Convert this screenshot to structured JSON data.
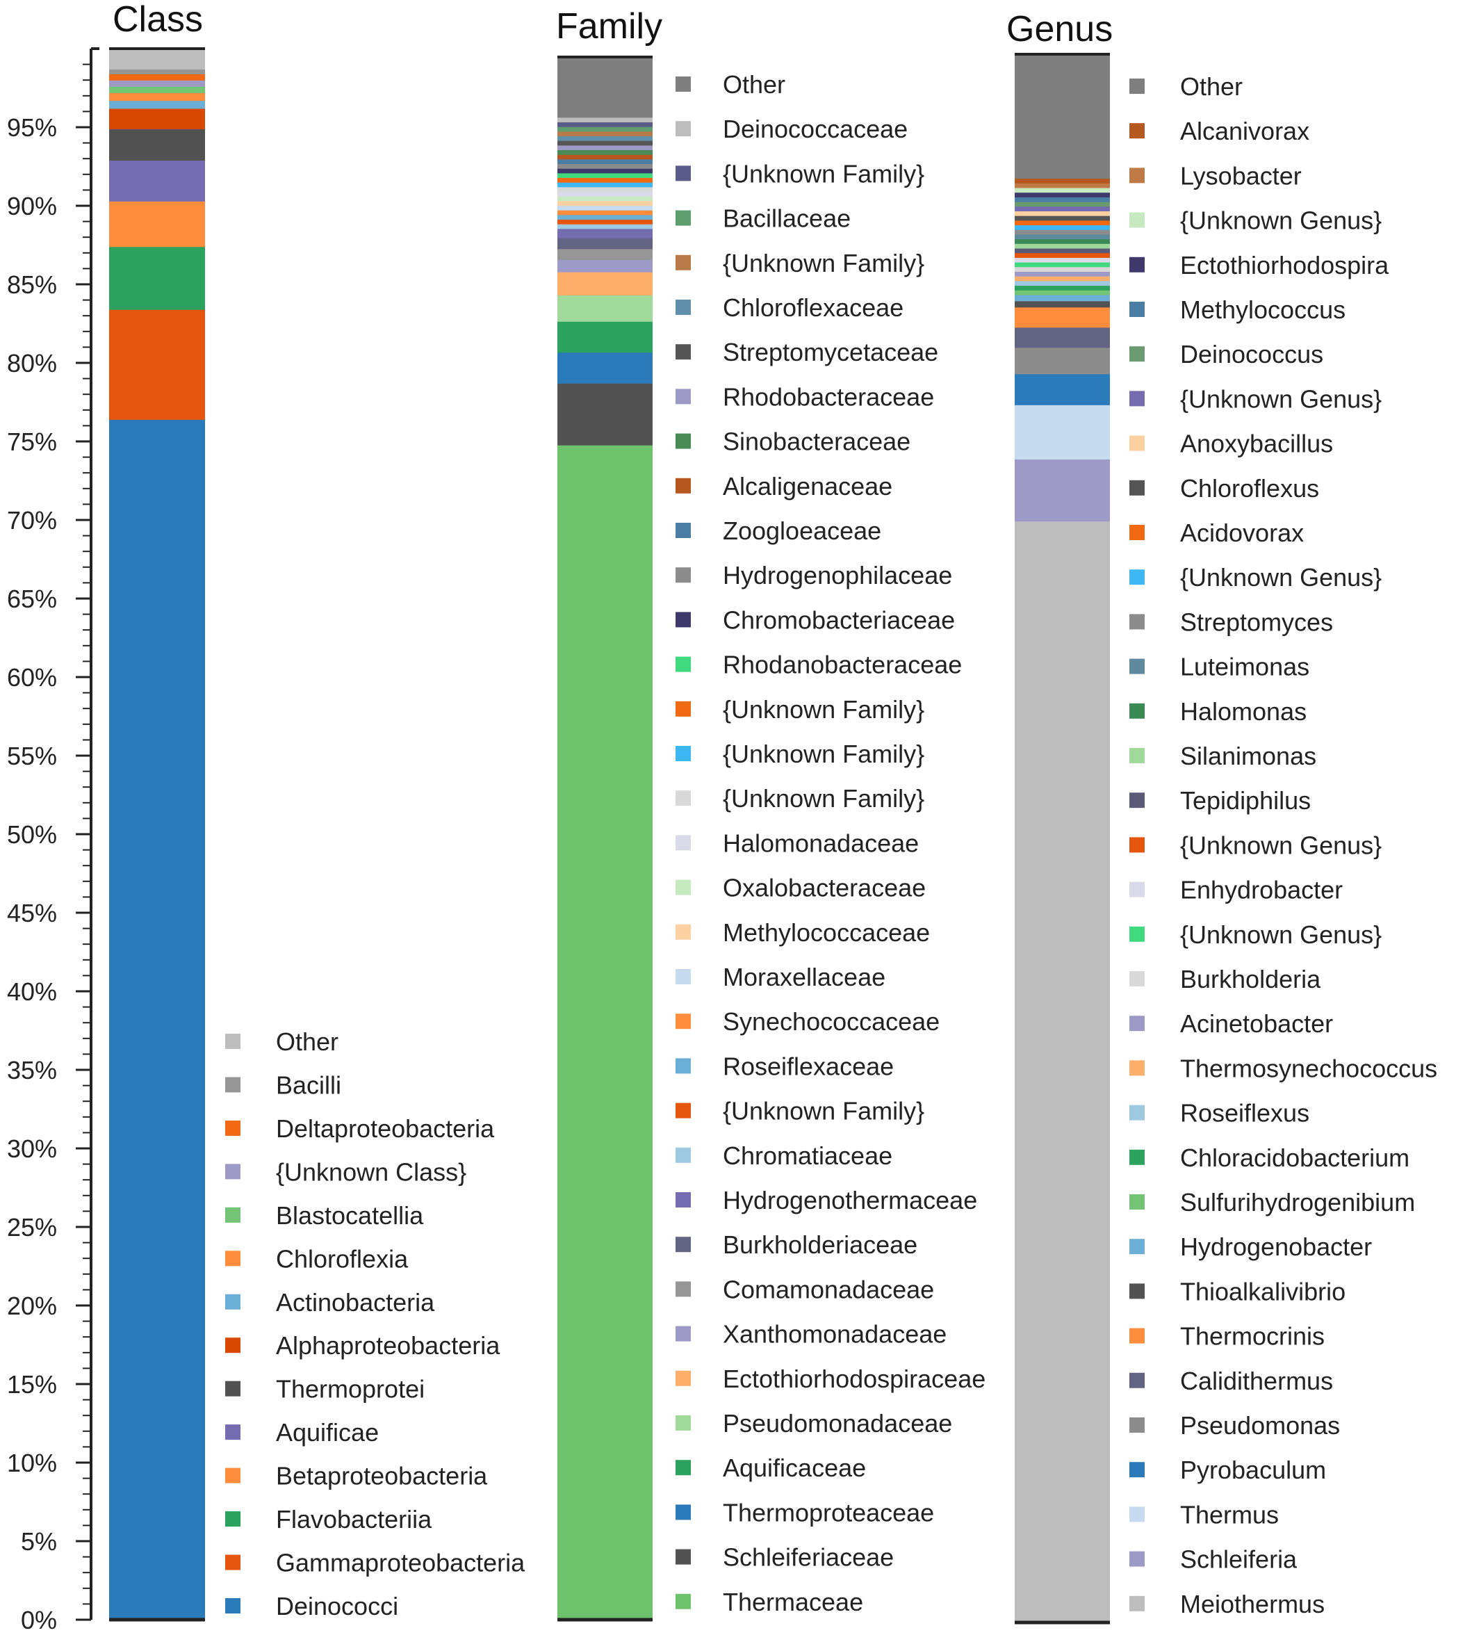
{
  "colors": {
    "axis": "#222222",
    "panel_border": "#222222"
  },
  "titles": {
    "class": "Class",
    "family": "Family",
    "genus": "Genus"
  },
  "chart_data": [
    {
      "type": "bar",
      "stacked": true,
      "title": "Class",
      "ylim": [
        0,
        100
      ],
      "yticks": [
        "0%",
        "5%",
        "10%",
        "15%",
        "20%",
        "25%",
        "30%",
        "35%",
        "40%",
        "45%",
        "50%",
        "55%",
        "60%",
        "65%",
        "70%",
        "75%",
        "80%",
        "85%",
        "90%",
        "95%"
      ],
      "series": [
        {
          "name": "Deinococci",
          "value": 76.4,
          "color": "#2b7bba"
        },
        {
          "name": "Gammaproteobacteria",
          "value": 7.0,
          "color": "#e6550d"
        },
        {
          "name": "Flavobacteriia",
          "value": 4.0,
          "color": "#2ca25f"
        },
        {
          "name": "Betaproteobacteria",
          "value": 2.9,
          "color": "#fd8d3c"
        },
        {
          "name": "Aquificae",
          "value": 2.6,
          "color": "#756bb1"
        },
        {
          "name": "Thermoprotei",
          "value": 2.0,
          "color": "#525252"
        },
        {
          "name": "Alphaproteobacteria",
          "value": 1.3,
          "color": "#d94801"
        },
        {
          "name": "Actinobacteria",
          "value": 0.5,
          "color": "#6baed6"
        },
        {
          "name": "Chloroflexia",
          "value": 0.5,
          "color": "#fd8d3c"
        },
        {
          "name": "Blastocatellia",
          "value": 0.4,
          "color": "#74c476"
        },
        {
          "name": "{Unknown Class}",
          "value": 0.4,
          "color": "#9e9ac8"
        },
        {
          "name": "Deltaproteobacteria",
          "value": 0.4,
          "color": "#f16913"
        },
        {
          "name": "Bacilli",
          "value": 0.3,
          "color": "#969696"
        },
        {
          "name": "Other",
          "value": 1.3,
          "color": "#bdbdbd"
        }
      ]
    },
    {
      "type": "bar",
      "stacked": true,
      "title": "Family",
      "ylim": [
        0,
        100
      ],
      "series": [
        {
          "name": "Thermaceae",
          "value": 76.0,
          "color": "#6cc36b"
        },
        {
          "name": "Schleiferiaceae",
          "value": 4.0,
          "color": "#525252"
        },
        {
          "name": "Thermoproteaceae",
          "value": 2.0,
          "color": "#2b7bba"
        },
        {
          "name": "Aquificaceae",
          "value": 2.0,
          "color": "#2ca25f"
        },
        {
          "name": "Pseudomonadaceae",
          "value": 1.7,
          "color": "#a1d99b"
        },
        {
          "name": "Ectothiorhodospiraceae",
          "value": 1.5,
          "color": "#fdae6b"
        },
        {
          "name": "Xanthomonadaceae",
          "value": 0.8,
          "color": "#9e9ac8"
        },
        {
          "name": "Comamonadaceae",
          "value": 0.7,
          "color": "#969696"
        },
        {
          "name": "Burkholderiaceae",
          "value": 0.7,
          "color": "#636383"
        },
        {
          "name": "Hydrogenothermaceae",
          "value": 0.6,
          "color": "#756bb1"
        },
        {
          "name": "Chromatiaceae",
          "value": 0.3,
          "color": "#9ecae1"
        },
        {
          "name": "{Unknown Family}",
          "value": 0.3,
          "color": "#e6550d"
        },
        {
          "name": "Roseiflexaceae",
          "value": 0.3,
          "color": "#6baed6"
        },
        {
          "name": "Synechococcaceae",
          "value": 0.3,
          "color": "#fd8d3c"
        },
        {
          "name": "Moraxellaceae",
          "value": 0.3,
          "color": "#c6dbef"
        },
        {
          "name": "Methylococcaceae",
          "value": 0.3,
          "color": "#fdd0a2"
        },
        {
          "name": "Oxalobacteraceae",
          "value": 0.3,
          "color": "#c7e9c0"
        },
        {
          "name": "Halomonadaceae",
          "value": 0.3,
          "color": "#dadaeb"
        },
        {
          "name": "{Unknown Family}",
          "value": 0.3,
          "color": "#d9d9d9"
        },
        {
          "name": "{Unknown Family}",
          "value": 0.3,
          "color": "#3db8f5"
        },
        {
          "name": "{Unknown Family}",
          "value": 0.3,
          "color": "#f16913"
        },
        {
          "name": "Rhodanobacteraceae",
          "value": 0.3,
          "color": "#41d97e"
        },
        {
          "name": "Chromobacteriaceae",
          "value": 0.3,
          "color": "#3f3a6b"
        },
        {
          "name": "Hydrogenophilaceae",
          "value": 0.3,
          "color": "#8c8c8c"
        },
        {
          "name": "Zoogloeaceae",
          "value": 0.3,
          "color": "#4a7ea5"
        },
        {
          "name": "Alcaligenaceae",
          "value": 0.3,
          "color": "#b5571e"
        },
        {
          "name": "Sinobacteraceae",
          "value": 0.3,
          "color": "#4a8a55"
        },
        {
          "name": "Rhodobacteraceae",
          "value": 0.3,
          "color": "#9e9ac8"
        },
        {
          "name": "Streptomycetaceae",
          "value": 0.3,
          "color": "#555555"
        },
        {
          "name": "Chloroflexaceae",
          "value": 0.3,
          "color": "#5f8faa"
        },
        {
          "name": "{Unknown Family}",
          "value": 0.3,
          "color": "#b87a48"
        },
        {
          "name": "Bacillaceae",
          "value": 0.3,
          "color": "#5e9e6e"
        },
        {
          "name": "{Unknown Family}",
          "value": 0.3,
          "color": "#5b5b8a"
        },
        {
          "name": "Deinococcaceae",
          "value": 0.3,
          "color": "#bdbdbd"
        },
        {
          "name": "Other",
          "value": 3.9,
          "color": "#7f7f7f"
        }
      ]
    },
    {
      "type": "bar",
      "stacked": true,
      "title": "Genus",
      "ylim": [
        0,
        100
      ],
      "series": [
        {
          "name": "Meiothermus",
          "value": 71.0,
          "color": "#bdbdbd"
        },
        {
          "name": "Schleiferia",
          "value": 4.0,
          "color": "#9e9ac8"
        },
        {
          "name": "Thermus",
          "value": 3.5,
          "color": "#c6dbef"
        },
        {
          "name": "Pyrobaculum",
          "value": 2.0,
          "color": "#2b7bba"
        },
        {
          "name": "Pseudomonas",
          "value": 1.7,
          "color": "#8c8c8c"
        },
        {
          "name": "Calidithermus",
          "value": 1.3,
          "color": "#636383"
        },
        {
          "name": "Thermocrinis",
          "value": 1.3,
          "color": "#fd8d3c"
        },
        {
          "name": "Thioalkalivibrio",
          "value": 0.4,
          "color": "#525252"
        },
        {
          "name": "Hydrogenobacter",
          "value": 0.4,
          "color": "#6baed6"
        },
        {
          "name": "Sulfurihydrogenibium",
          "value": 0.3,
          "color": "#74c476"
        },
        {
          "name": "Chloracidobacterium",
          "value": 0.3,
          "color": "#2ca25f"
        },
        {
          "name": "Roseiflexus",
          "value": 0.3,
          "color": "#9ecae1"
        },
        {
          "name": "Thermosynechococcus",
          "value": 0.3,
          "color": "#fdae6b"
        },
        {
          "name": "Acinetobacter",
          "value": 0.3,
          "color": "#9e9ac8"
        },
        {
          "name": "Burkholderia",
          "value": 0.3,
          "color": "#d9d9d9"
        },
        {
          "name": "{Unknown Genus}",
          "value": 0.3,
          "color": "#41d97e"
        },
        {
          "name": "Enhydrobacter",
          "value": 0.3,
          "color": "#dadaeb"
        },
        {
          "name": "{Unknown Genus}",
          "value": 0.3,
          "color": "#e6550d"
        },
        {
          "name": "Tepidiphilus",
          "value": 0.3,
          "color": "#5b5b78"
        },
        {
          "name": "Silanimonas",
          "value": 0.3,
          "color": "#a1d99b"
        },
        {
          "name": "Halomonas",
          "value": 0.3,
          "color": "#3a8a55"
        },
        {
          "name": "Luteimonas",
          "value": 0.3,
          "color": "#5f8a9e"
        },
        {
          "name": "Streptomyces",
          "value": 0.3,
          "color": "#8c8c8c"
        },
        {
          "name": "{Unknown Genus}",
          "value": 0.3,
          "color": "#3db8f5"
        },
        {
          "name": "Acidovorax",
          "value": 0.3,
          "color": "#f16913"
        },
        {
          "name": "Chloroflexus",
          "value": 0.3,
          "color": "#555555"
        },
        {
          "name": "Anoxybacillus",
          "value": 0.3,
          "color": "#fdd0a2"
        },
        {
          "name": "{Unknown Genus}",
          "value": 0.3,
          "color": "#756bb1"
        },
        {
          "name": "Deinococcus",
          "value": 0.3,
          "color": "#6a9a70"
        },
        {
          "name": "Methylococcus",
          "value": 0.3,
          "color": "#4a7ea5"
        },
        {
          "name": "Ectothiorhodospira",
          "value": 0.3,
          "color": "#3f3a6b"
        },
        {
          "name": "{Unknown Genus}",
          "value": 0.3,
          "color": "#c7e9c0"
        },
        {
          "name": "Lysobacter",
          "value": 0.3,
          "color": "#c07a45"
        },
        {
          "name": "Alcanivorax",
          "value": 0.3,
          "color": "#b5571e"
        },
        {
          "name": "Other",
          "value": 8.0,
          "color": "#7f7f7f"
        }
      ]
    }
  ]
}
